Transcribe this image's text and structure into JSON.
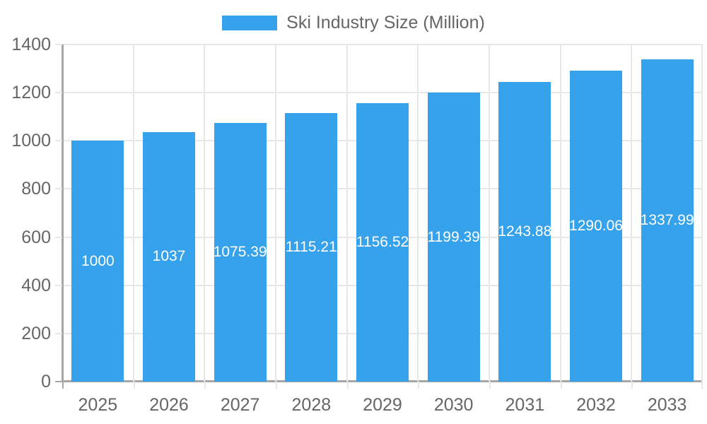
{
  "chart_data": {
    "type": "bar",
    "title": "",
    "legend": "Ski Industry Size (Million)",
    "legend_position": "top-center",
    "categories": [
      "2025",
      "2026",
      "2027",
      "2028",
      "2029",
      "2030",
      "2031",
      "2032",
      "2033"
    ],
    "series": [
      {
        "name": "Ski Industry Size (Million)",
        "values": [
          1000,
          1037,
          1075.39,
          1115.21,
          1156.52,
          1199.39,
          1243.88,
          1290.06,
          1337.99
        ]
      }
    ],
    "bar_labels": [
      "1000",
      "1037",
      "1075.39",
      "1115.21",
      "1156.52",
      "1199.39",
      "1243.88",
      "1290.06",
      "1337.99"
    ],
    "xlabel": "",
    "ylabel": "",
    "ylim": [
      0,
      1400
    ],
    "yticks": [
      0,
      200,
      400,
      600,
      800,
      1000,
      1200,
      1400
    ],
    "grid": true,
    "colors": {
      "bar": "#36A2EB",
      "grid_line": "#E7E7E7",
      "axis_line": "#A6A6A6",
      "tick_text": "#666666",
      "legend_text": "#666666",
      "bar_label_text": "#FFFFFF",
      "background": "#FFFFFF"
    }
  }
}
